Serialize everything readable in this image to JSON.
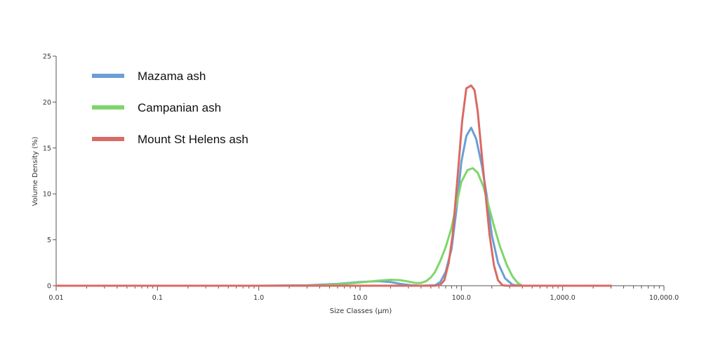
{
  "chart_data": {
    "type": "line",
    "xscale": "log",
    "xlabel": "Size Classes (μm)",
    "ylabel": "Volume Density (%)",
    "xlim": [
      0.01,
      10000
    ],
    "ylim": [
      0,
      25
    ],
    "x_ticks": [
      0.01,
      0.1,
      1,
      10,
      100,
      1000,
      10000
    ],
    "x_tick_labels": [
      "0.01",
      "0.1",
      "1.0",
      "10.0",
      "100.0",
      "1,000.0",
      "10,000.0"
    ],
    "y_ticks": [
      0,
      5,
      10,
      15,
      20,
      25
    ],
    "y_tick_labels": [
      "0",
      "5",
      "10",
      "15",
      "20",
      "25"
    ],
    "grid": false,
    "legend_position": "top-left",
    "series": [
      {
        "name": "Mazama ash",
        "color": "#6a9fd4",
        "points": [
          [
            0.01,
            0
          ],
          [
            1,
            0
          ],
          [
            3,
            0.05
          ],
          [
            6,
            0.2
          ],
          [
            10,
            0.4
          ],
          [
            15,
            0.5
          ],
          [
            20,
            0.4
          ],
          [
            25,
            0.2
          ],
          [
            32,
            0.05
          ],
          [
            40,
            0
          ],
          [
            55,
            0.05
          ],
          [
            62,
            0.4
          ],
          [
            70,
            1.5
          ],
          [
            80,
            4
          ],
          [
            90,
            8.5
          ],
          [
            100,
            13.5
          ],
          [
            112,
            16.3
          ],
          [
            125,
            17.2
          ],
          [
            140,
            16
          ],
          [
            160,
            13
          ],
          [
            180,
            9.5
          ],
          [
            200,
            5.5
          ],
          [
            230,
            2.5
          ],
          [
            270,
            0.8
          ],
          [
            320,
            0.1
          ],
          [
            380,
            0
          ],
          [
            3000,
            0
          ]
        ]
      },
      {
        "name": "Campanian ash",
        "color": "#7ed66a",
        "points": [
          [
            0.01,
            0
          ],
          [
            2,
            0
          ],
          [
            4,
            0.05
          ],
          [
            7,
            0.2
          ],
          [
            10,
            0.35
          ],
          [
            15,
            0.55
          ],
          [
            20,
            0.65
          ],
          [
            25,
            0.6
          ],
          [
            30,
            0.45
          ],
          [
            35,
            0.3
          ],
          [
            40,
            0.3
          ],
          [
            45,
            0.5
          ],
          [
            50,
            0.9
          ],
          [
            55,
            1.5
          ],
          [
            62,
            2.7
          ],
          [
            70,
            4.2
          ],
          [
            80,
            6.3
          ],
          [
            90,
            9
          ],
          [
            100,
            11.3
          ],
          [
            115,
            12.6
          ],
          [
            130,
            12.8
          ],
          [
            145,
            12.3
          ],
          [
            165,
            10.8
          ],
          [
            185,
            8.8
          ],
          [
            210,
            6.5
          ],
          [
            240,
            4.3
          ],
          [
            280,
            2.3
          ],
          [
            320,
            1
          ],
          [
            360,
            0.3
          ],
          [
            400,
            0
          ],
          [
            3000,
            0
          ]
        ]
      },
      {
        "name": "Mount St Helens ash",
        "color": "#d96a64",
        "points": [
          [
            0.01,
            0
          ],
          [
            55,
            0
          ],
          [
            62,
            0.1
          ],
          [
            68,
            0.6
          ],
          [
            75,
            2.5
          ],
          [
            82,
            5.5
          ],
          [
            92,
            12
          ],
          [
            102,
            18
          ],
          [
            112,
            21.5
          ],
          [
            125,
            21.8
          ],
          [
            135,
            21.3
          ],
          [
            145,
            19
          ],
          [
            160,
            14
          ],
          [
            175,
            9.5
          ],
          [
            190,
            5.5
          ],
          [
            210,
            2.2
          ],
          [
            230,
            0.6
          ],
          [
            255,
            0.05
          ],
          [
            280,
            0
          ],
          [
            3000,
            0
          ]
        ]
      }
    ]
  }
}
